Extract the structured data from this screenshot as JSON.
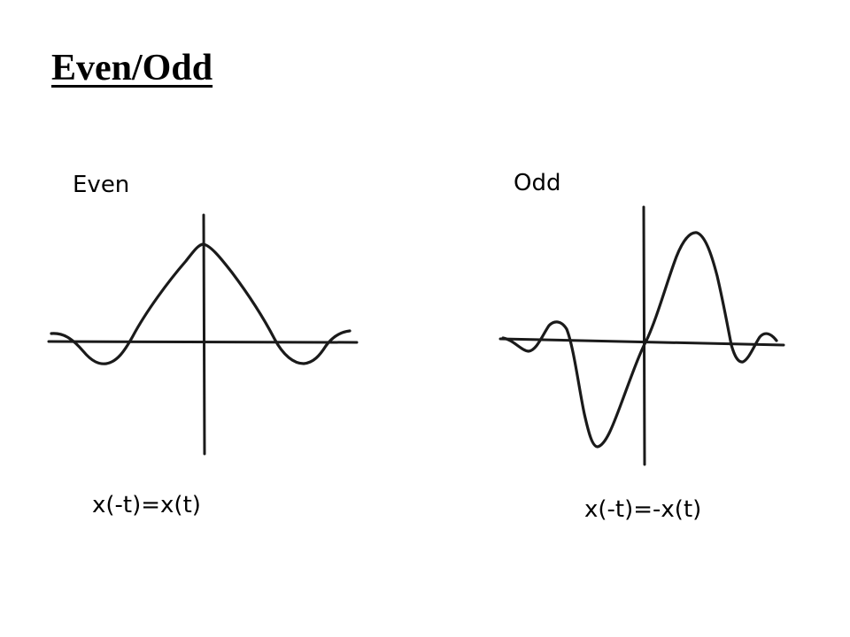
{
  "title": "Even/Odd",
  "panels": {
    "even": {
      "label": "Even",
      "formula": "x(-t)=x(t)"
    },
    "odd": {
      "label": "Odd",
      "formula": "x(-t)=-x(t)"
    }
  },
  "colors": {
    "ink": "#1a1a1a",
    "background": "#ffffff"
  }
}
